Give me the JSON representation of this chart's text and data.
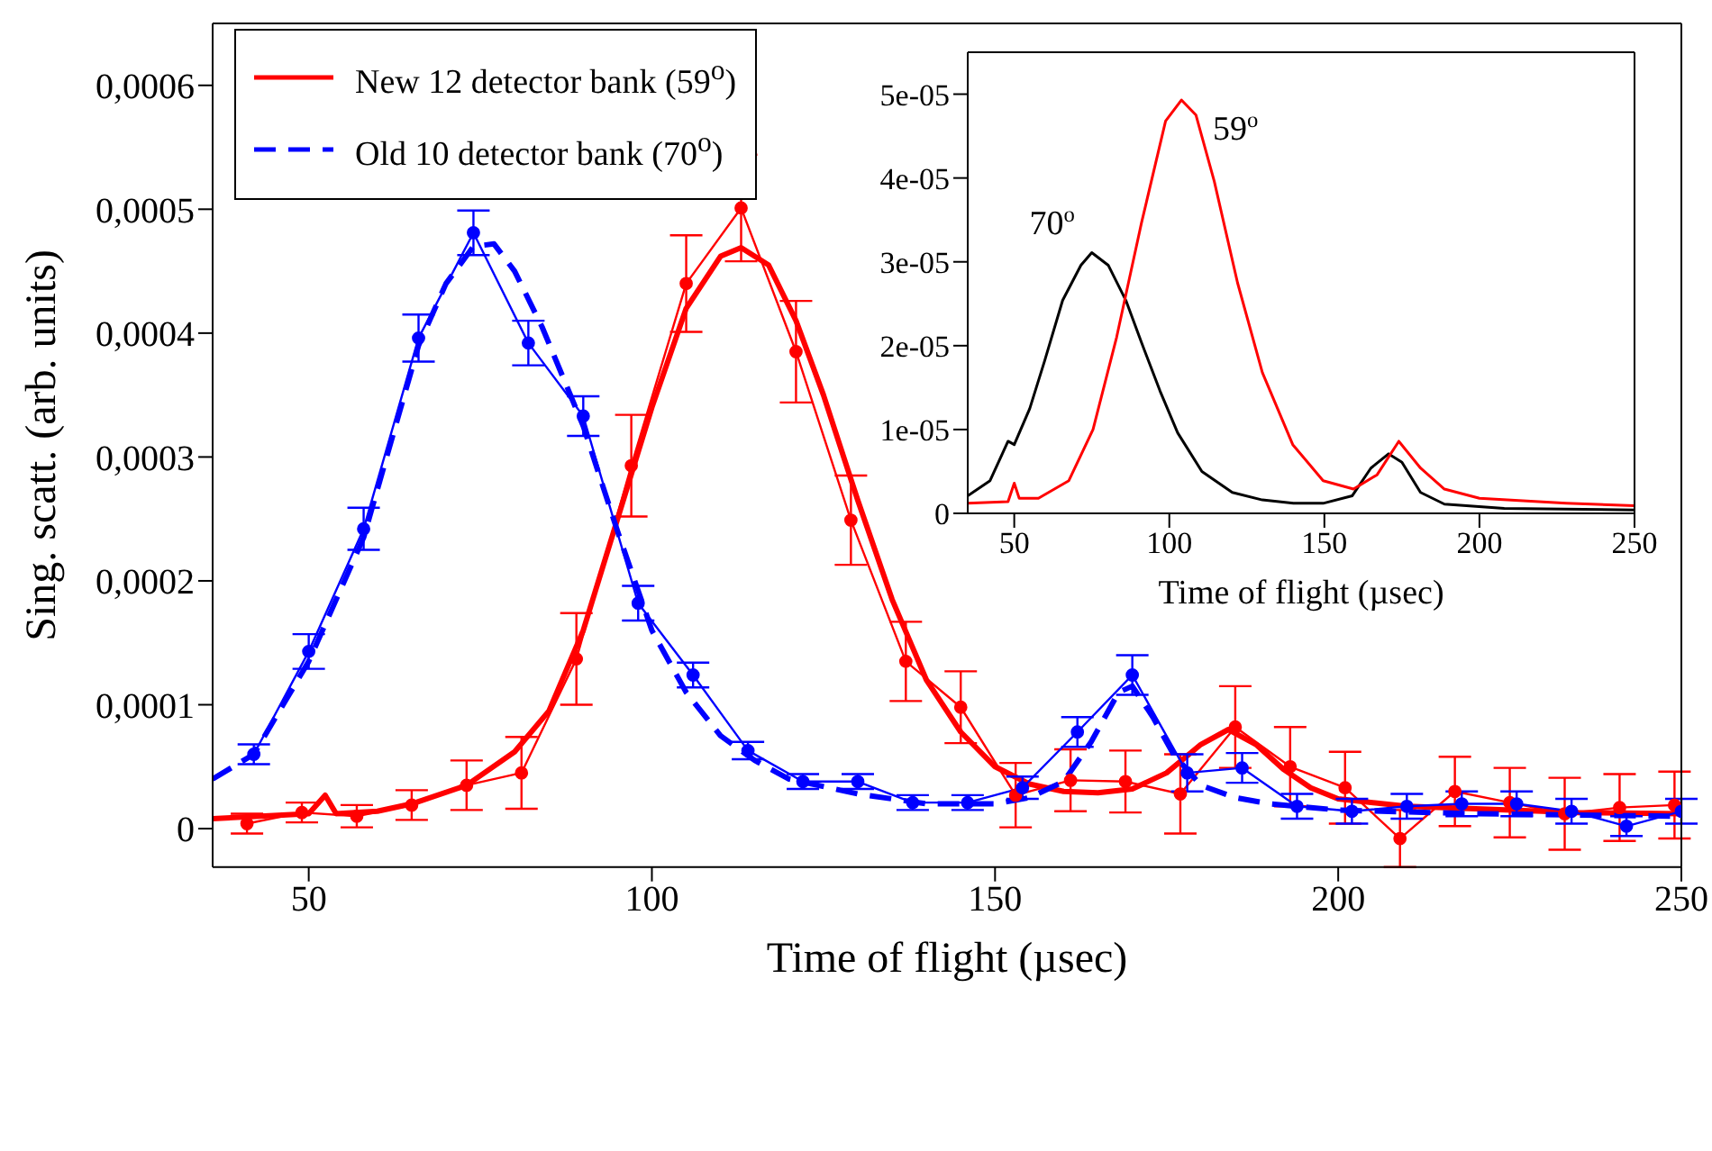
{
  "chart_data": [
    {
      "type": "line",
      "xlabel": "Time of flight (µsec)",
      "ylabel": "Sing. scatt. (arb. units)",
      "xlim": [
        36,
        250
      ],
      "ylim": [
        -3.1e-05,
        0.00065
      ],
      "xticks": [
        50,
        100,
        150,
        200,
        250
      ],
      "yticks": [
        0,
        {
          "value": 0.0001,
          "label": "0,0001"
        },
        {
          "value": 0.0002,
          "label": "0,0002"
        },
        {
          "value": 0.0003,
          "label": "0,0003"
        },
        {
          "value": 0.0004,
          "label": "0,0004"
        },
        {
          "value": 0.0005,
          "label": "0,0005"
        },
        {
          "value": 0.0006,
          "label": "0,0006"
        }
      ],
      "legend": "top left",
      "grid": false,
      "series": [
        {
          "color": "#ff0000",
          "marker": "circle",
          "line_style": "solid",
          "x": [
            41,
            49,
            57,
            65,
            73,
            81,
            89,
            97,
            105,
            113,
            121,
            129,
            137,
            145,
            153,
            161,
            169,
            177,
            185,
            193,
            201,
            209,
            217,
            225,
            233,
            241,
            249
          ],
          "values": [
            4e-06,
            1.3e-05,
            1e-05,
            1.9e-05,
            3.5e-05,
            4.5e-05,
            0.000137,
            0.000293,
            0.00044,
            0.000501,
            0.000385,
            0.000249,
            0.000135,
            9.8e-05,
            2.7e-05,
            3.9e-05,
            3.8e-05,
            2.8e-05,
            8.2e-05,
            5e-05,
            3.3e-05,
            -8e-06,
            3e-05,
            2.1e-05,
            1.2e-05,
            1.7e-05,
            1.9e-05
          ],
          "errors": [
            8e-06,
            8e-06,
            9e-06,
            1.2e-05,
            2e-05,
            2.9e-05,
            3.7e-05,
            4.1e-05,
            3.9e-05,
            4.3e-05,
            4.1e-05,
            3.6e-05,
            3.2e-05,
            2.9e-05,
            2.6e-05,
            2.5e-05,
            2.5e-05,
            3.2e-05,
            3.3e-05,
            3.2e-05,
            2.9e-05,
            2.3e-05,
            2.8e-05,
            2.8e-05,
            2.9e-05,
            2.7e-05,
            2.7e-05
          ]
        },
        {
          "name": "New 12 detector bank (59$^{o}$)",
          "color": "#ff0000",
          "marker": "none",
          "line_style": "solid",
          "x": [
            36,
            50,
            52.4,
            54,
            60,
            65,
            73,
            80,
            85,
            90,
            95,
            100,
            105,
            110,
            113,
            117,
            121,
            125,
            130,
            135,
            140,
            145,
            150,
            155,
            160,
            165,
            170,
            175,
            180,
            184,
            188,
            192,
            196,
            200,
            210,
            220,
            235,
            250
          ],
          "values": [
            8e-06,
            1.2e-05,
            2.7e-05,
            1.2e-05,
            1.4e-05,
            2e-05,
            3.5e-05,
            6.2e-05,
            9.5e-05,
            0.00016,
            0.00025,
            0.00034,
            0.00042,
            0.000462,
            0.000469,
            0.000455,
            0.00041,
            0.00035,
            0.000265,
            0.000185,
            0.00012,
            7.8e-05,
            5e-05,
            3.6e-05,
            3e-05,
            2.9e-05,
            3.2e-05,
            4.5e-05,
            6.8e-05,
            8e-05,
            6.8e-05,
            4.8e-05,
            3.3e-05,
            2.4e-05,
            1.8e-05,
            1.6e-05,
            1.3e-05,
            1.2e-05
          ]
        },
        {
          "color": "#0000ff",
          "marker": "circle",
          "line_style": "solid",
          "x": [
            42,
            50,
            58,
            66,
            74,
            82,
            90,
            98,
            106,
            114,
            122,
            130,
            138,
            146,
            154,
            162,
            170,
            178,
            186,
            194,
            202,
            210,
            218,
            226,
            234,
            242,
            250
          ],
          "values": [
            6e-05,
            0.000143,
            0.000242,
            0.000396,
            0.000481,
            0.000392,
            0.000333,
            0.000182,
            0.000124,
            6.3e-05,
            3.8e-05,
            3.8e-05,
            2.1e-05,
            2.1e-05,
            3.3e-05,
            7.8e-05,
            0.000124,
            4.5e-05,
            4.9e-05,
            1.8e-05,
            1.4e-05,
            1.8e-05,
            2e-05,
            2e-05,
            1.4e-05,
            2e-06,
            1.4e-05
          ],
          "errors": [
            8e-06,
            1.4e-05,
            1.7e-05,
            1.9e-05,
            1.8e-05,
            1.8e-05,
            1.6e-05,
            1.4e-05,
            1e-05,
            7e-06,
            6e-06,
            6e-06,
            6e-06,
            6e-06,
            9e-06,
            1.2e-05,
            1.6e-05,
            1.5e-05,
            1.2e-05,
            1e-05,
            1e-05,
            1e-05,
            1e-05,
            1e-05,
            1e-05,
            8e-06,
            1e-05
          ]
        },
        {
          "name": "Old 10 detector bank (70$^{o}$)",
          "color": "#0000ff",
          "marker": "none",
          "line_style": "dashed",
          "x": [
            36,
            42,
            50,
            58,
            66,
            70,
            74,
            77,
            80,
            84,
            90,
            95,
            100,
            105,
            110,
            115,
            120,
            130,
            140,
            150,
            155,
            160,
            164,
            168,
            170,
            173,
            176,
            180,
            185,
            190,
            200,
            220,
            250
          ],
          "values": [
            4e-05,
            6e-05,
            0.000135,
            0.000235,
            0.00039,
            0.00044,
            0.00047,
            0.000472,
            0.00045,
            0.000405,
            0.000325,
            0.00024,
            0.00016,
            0.00011,
            7.5e-05,
            5.5e-05,
            4e-05,
            2.8e-05,
            2e-05,
            2e-05,
            2.5e-05,
            3.8e-05,
            7e-05,
            0.00011,
            0.000115,
            9e-05,
            6e-05,
            3.5e-05,
            2.5e-05,
            2e-05,
            1.5e-05,
            1.2e-05,
            1e-05
          ]
        }
      ]
    },
    {
      "type": "line",
      "xlabel": "Time of flight (µsec)",
      "xlim": [
        35,
        250
      ],
      "ylim": [
        0,
        5.5e-05
      ],
      "xticks": [
        50,
        100,
        150,
        200,
        250
      ],
      "yticks": [
        0,
        {
          "value": 1e-05,
          "label": "1e-05"
        },
        {
          "value": 2e-05,
          "label": "2e-05"
        },
        {
          "value": 3e-05,
          "label": "3e-05"
        },
        {
          "value": 4e-05,
          "label": "4e-05"
        },
        {
          "value": 5e-05,
          "label": "5e-05"
        }
      ],
      "grid": false,
      "legend": false,
      "annotations": [
        "70$^{o}$",
        "59$^{o}$"
      ],
      "series": [
        {
          "color": "#000000",
          "marker": "none",
          "line_style": "solid",
          "x": [
            35,
            42.2,
            48,
            50,
            55,
            59.8,
            65.6,
            71.5,
            75,
            80.3,
            86,
            91,
            97,
            102.7,
            110.5,
            120.3,
            130,
            140,
            149.6,
            159,
            165,
            170.7,
            175,
            181,
            188.7,
            208,
            250
          ],
          "values": [
            2.1e-06,
            3.9e-06,
            8.6e-06,
            8.2e-06,
            1.25e-05,
            1.82e-05,
            2.54e-05,
            2.96e-05,
            3.11e-05,
            2.96e-05,
            2.54e-05,
            2.04e-05,
            1.46e-05,
            9.6e-06,
            5e-06,
            2.5e-06,
            1.6e-06,
            1.2e-06,
            1.2e-06,
            2.1e-06,
            5.4e-06,
            7.1e-06,
            6.1e-06,
            2.5e-06,
            1.1e-06,
            6e-07,
            4e-07
          ]
        },
        {
          "color": "#ff0000",
          "marker": "none",
          "line_style": "solid",
          "x": [
            35,
            48,
            50,
            51.6,
            57.8,
            67.6,
            75.4,
            83,
            91,
            98.8,
            103.9,
            108.6,
            114.5,
            122,
            130,
            139.8,
            149.6,
            159.4,
            167,
            174,
            181,
            188.7,
            200,
            228,
            250
          ],
          "values": [
            1.2e-06,
            1.4e-06,
            3.6e-06,
            1.8e-06,
            1.8e-06,
            3.9e-06,
            1e-05,
            2.1e-05,
            3.46e-05,
            4.68e-05,
            4.93e-05,
            4.75e-05,
            3.96e-05,
            2.75e-05,
            1.68e-05,
            8.2e-06,
            3.9e-06,
            2.9e-06,
            4.6e-06,
            8.6e-06,
            5.4e-06,
            2.9e-06,
            1.8e-06,
            1.2e-06,
            9e-07
          ]
        }
      ]
    }
  ]
}
